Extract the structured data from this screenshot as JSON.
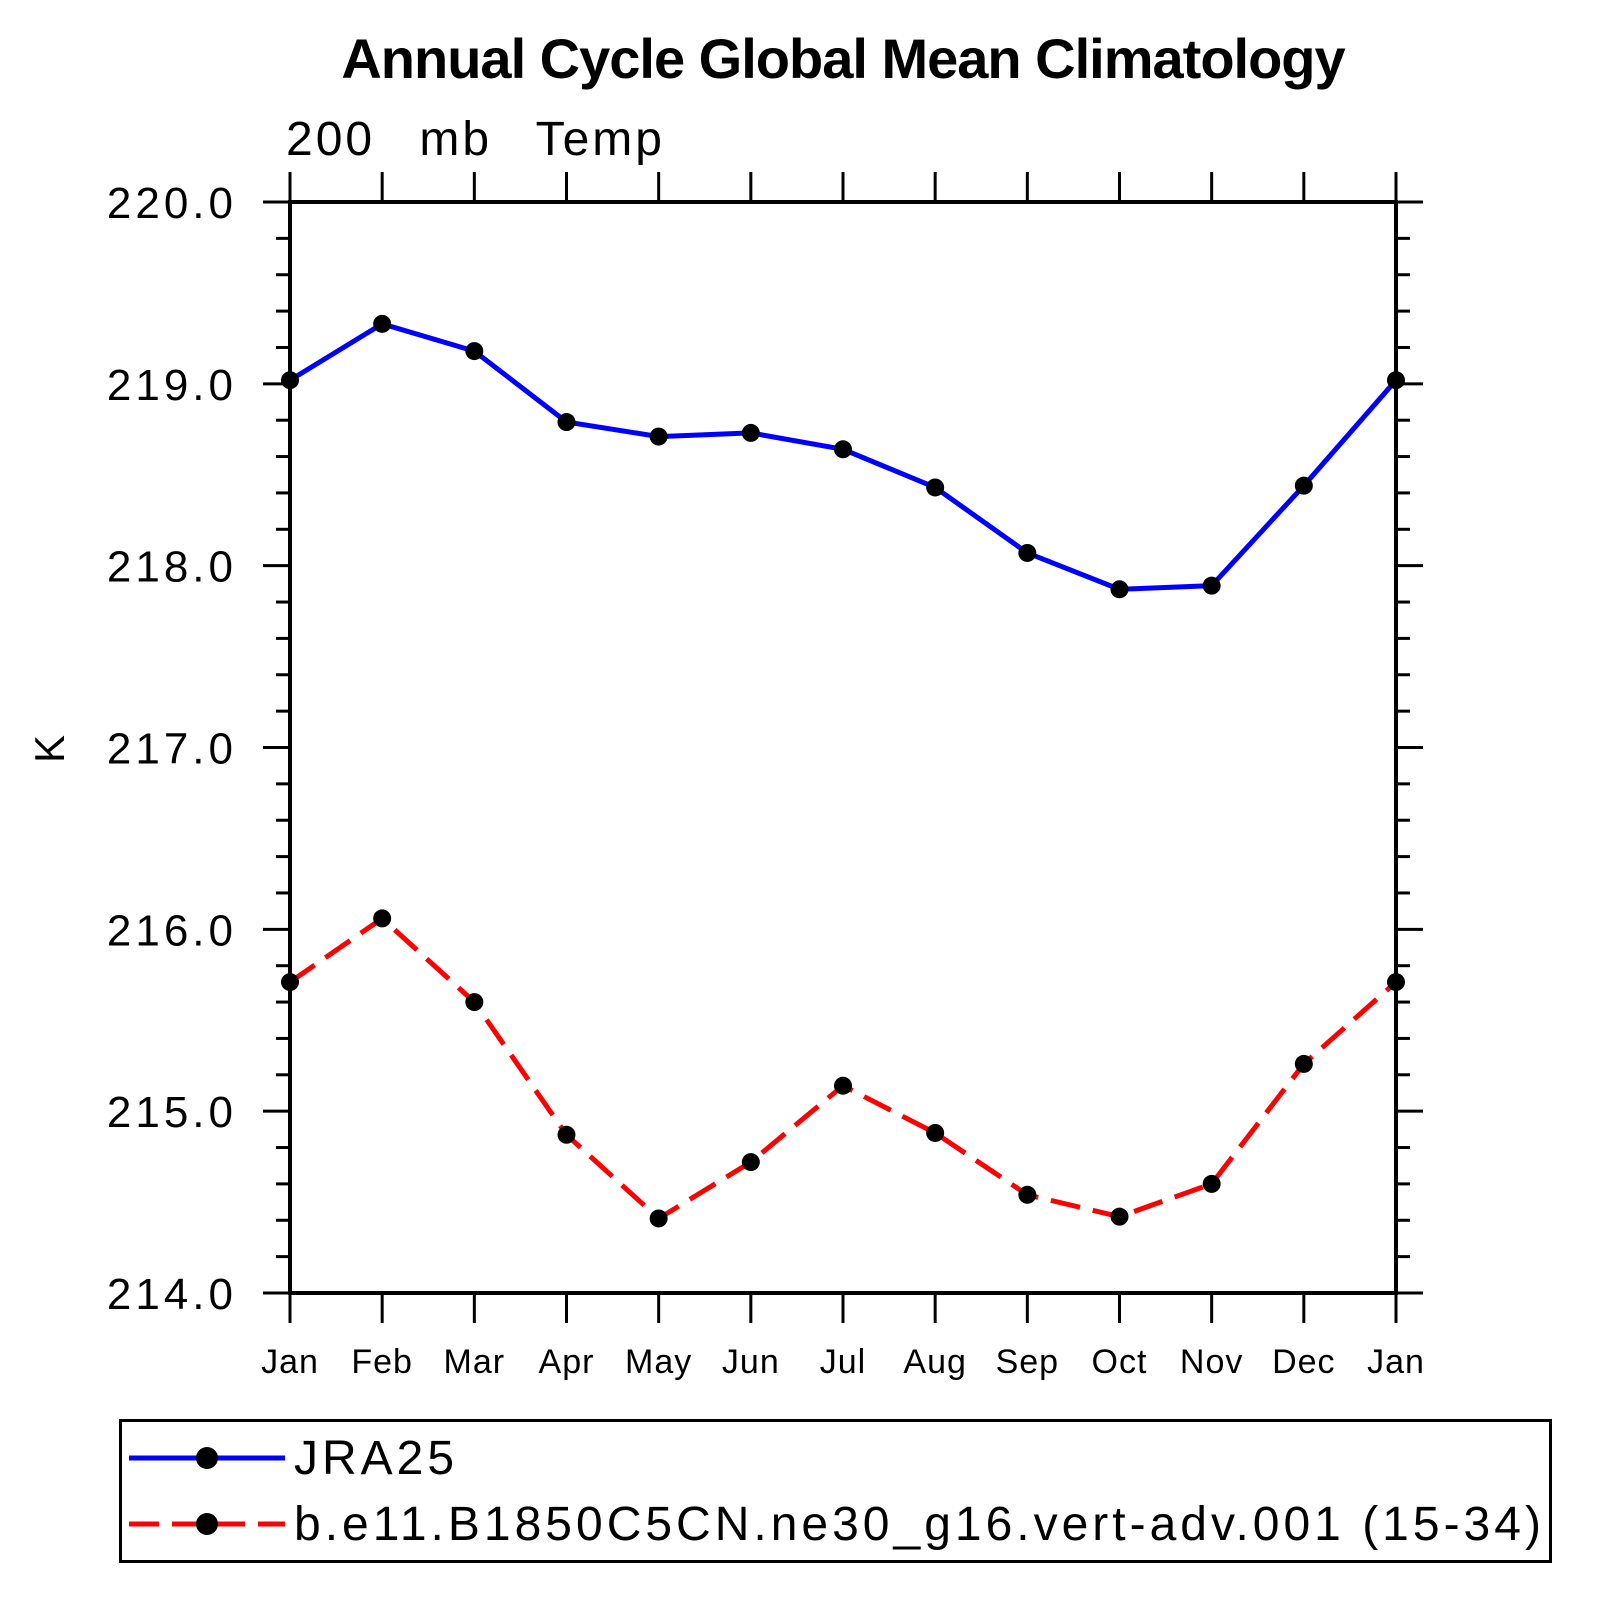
{
  "page": {
    "background": "#ffffff"
  },
  "chart_data": {
    "type": "line",
    "title": "Annual Cycle Global Mean Climatology",
    "subtitle": "200 mb Temp",
    "xlabel": "",
    "ylabel": "K",
    "categories": [
      "Jan",
      "Feb",
      "Mar",
      "Apr",
      "May",
      "Jun",
      "Jul",
      "Aug",
      "Sep",
      "Oct",
      "Nov",
      "Dec",
      "Jan"
    ],
    "ylim": [
      214.0,
      220.0
    ],
    "ytick_values": [
      220,
      219,
      218,
      217,
      216,
      215,
      214
    ],
    "ytick_labels": [
      "220.0",
      "219.0",
      "218.0",
      "217.0",
      "216.0",
      "215.0",
      "214.0"
    ],
    "y_minor_step": 0.2,
    "grid": false,
    "legend_position": "bottom",
    "axis_color": "#000000",
    "marker_color": "#000000",
    "series": [
      {
        "name": "JRA25",
        "color": "#0000ff",
        "line_style": "solid",
        "marker": "filled-circle",
        "values": [
          219.02,
          219.33,
          219.18,
          218.79,
          218.71,
          218.73,
          218.64,
          218.43,
          218.07,
          217.87,
          217.89,
          218.44,
          219.02
        ]
      },
      {
        "name": "b.e11.B1850C5CN.ne30_g16.vert-adv.001 (15-34)",
        "color": "#ff0000",
        "line_style": "dashed",
        "marker": "filled-circle",
        "values": [
          215.71,
          216.06,
          215.6,
          214.87,
          214.41,
          214.72,
          215.14,
          214.88,
          214.54,
          214.42,
          214.6,
          215.26,
          215.71
        ]
      }
    ]
  }
}
